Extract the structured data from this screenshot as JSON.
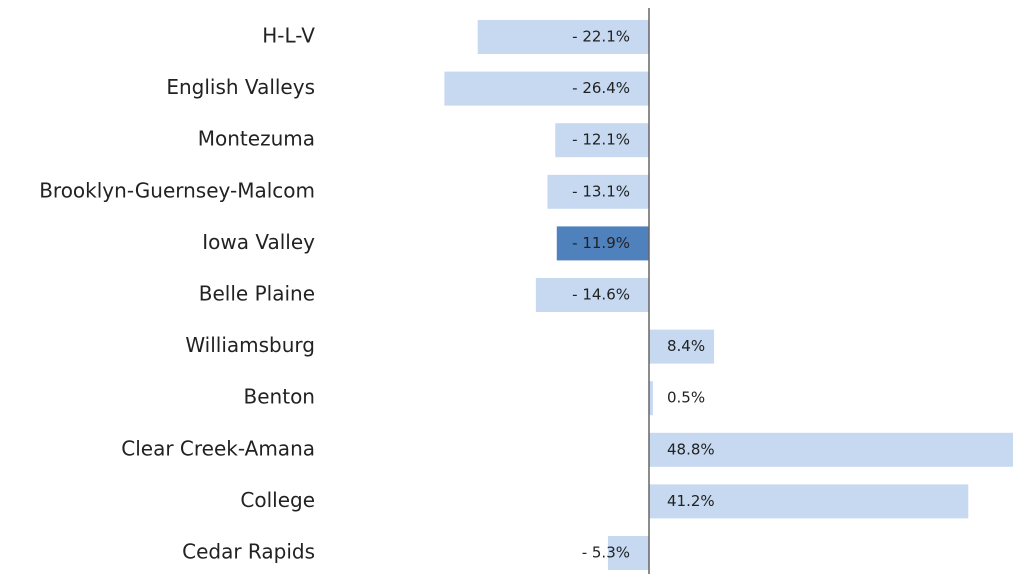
{
  "chart_data": {
    "type": "barh",
    "categories": [
      "H-L-V",
      "English Valleys",
      "Montezuma",
      "Brooklyn-Guernsey-Malcom",
      "Iowa Valley",
      "Belle Plaine",
      "Williamsburg",
      "Benton",
      "Clear Creek-Amana",
      "College",
      "Cedar Rapids"
    ],
    "values": [
      -22.1,
      -26.4,
      -12.1,
      -13.1,
      -11.9,
      -14.6,
      8.4,
      0.5,
      48.8,
      41.2,
      -5.3
    ],
    "value_labels": [
      "- 22.1%",
      "- 26.4%",
      "- 12.1%",
      "- 13.1%",
      "- 11.9%",
      "- 14.6%",
      "8.4%",
      "0.5%",
      "48.8%",
      "41.2%",
      "- 5.3%"
    ],
    "colors": [
      "#c6d9f1",
      "#c6d9f1",
      "#c6d9f1",
      "#c6d9f1",
      "#4f81bd",
      "#c6d9f1",
      "#c6d9f1",
      "#c6d9f1",
      "#c6d9f1",
      "#c6d9f1",
      "#c6d9f1"
    ]
  }
}
